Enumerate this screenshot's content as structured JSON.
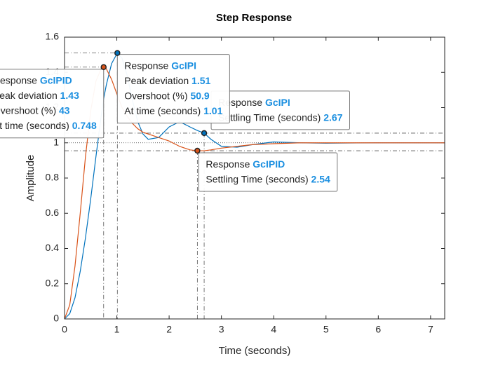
{
  "chart_data": {
    "type": "line",
    "title": "Step Response",
    "xlabel": "Time (seconds)",
    "ylabel": "Amplitude",
    "xlim": [
      0,
      7.27
    ],
    "ylim": [
      0,
      1.6
    ],
    "xticks": [
      0,
      1,
      2,
      3,
      4,
      5,
      6,
      7
    ],
    "yticks": [
      0,
      0.2,
      0.4,
      0.6,
      0.8,
      1,
      1.2,
      1.4,
      1.6
    ],
    "x": [
      0,
      0.1,
      0.2,
      0.3,
      0.4,
      0.5,
      0.6,
      0.7,
      0.748,
      0.8,
      0.9,
      1.01,
      1.1,
      1.2,
      1.3,
      1.4,
      1.5,
      1.6,
      1.8,
      2.0,
      2.2,
      2.4,
      2.54,
      2.67,
      2.8,
      3.0,
      3.3,
      3.6,
      4.0,
      4.5,
      5,
      6,
      7,
      7.27
    ],
    "series": [
      {
        "name": "GcIPI",
        "color": "#0072bd",
        "values": [
          0,
          0.03,
          0.12,
          0.27,
          0.46,
          0.68,
          0.92,
          1.15,
          1.25,
          1.33,
          1.45,
          1.51,
          1.48,
          1.38,
          1.24,
          1.12,
          1.05,
          1.02,
          1.03,
          1.09,
          1.12,
          1.09,
          1.07,
          1.055,
          1.02,
          0.98,
          0.975,
          0.99,
          1.005,
          1.0,
          0.998,
          1.0,
          1.0,
          1.0
        ]
      },
      {
        "name": "GcIPID",
        "color": "#d95319",
        "values": [
          0,
          0.08,
          0.3,
          0.6,
          0.92,
          1.18,
          1.35,
          1.42,
          1.43,
          1.42,
          1.36,
          1.27,
          1.2,
          1.15,
          1.11,
          1.08,
          1.06,
          1.05,
          1.03,
          1.01,
          0.98,
          0.96,
          0.955,
          0.955,
          0.96,
          0.97,
          0.98,
          0.99,
          0.995,
          1.0,
          1.0,
          1.0,
          1.0,
          1.0
        ]
      }
    ],
    "final_value": 1,
    "settling_band": [
      0.955,
      1.055
    ],
    "tip_title": "Response",
    "datatips": [
      {
        "series": 1,
        "kind": "settling",
        "y": 0.955,
        "lines": [
          {
            "label": "Settling Time (seconds)",
            "value": 2.54
          }
        ]
      },
      {
        "series": 0,
        "kind": "settling",
        "y": 1.055,
        "lines": [
          {
            "label": "Settling Time (seconds)",
            "value": 2.67
          }
        ]
      },
      {
        "series": 1,
        "kind": "peak",
        "lines": [
          {
            "label": "Peak deviation",
            "value": 1.43
          },
          {
            "label": "Overshoot (%)",
            "value": 43
          },
          {
            "label": "At time (seconds)",
            "value": 0.748
          }
        ]
      },
      {
        "series": 0,
        "kind": "peak",
        "lines": [
          {
            "label": "Peak deviation",
            "value": 1.51
          },
          {
            "label": "Overshoot (%)",
            "value": 50.9
          },
          {
            "label": "At time (seconds)",
            "value": 1.01
          }
        ]
      }
    ]
  }
}
